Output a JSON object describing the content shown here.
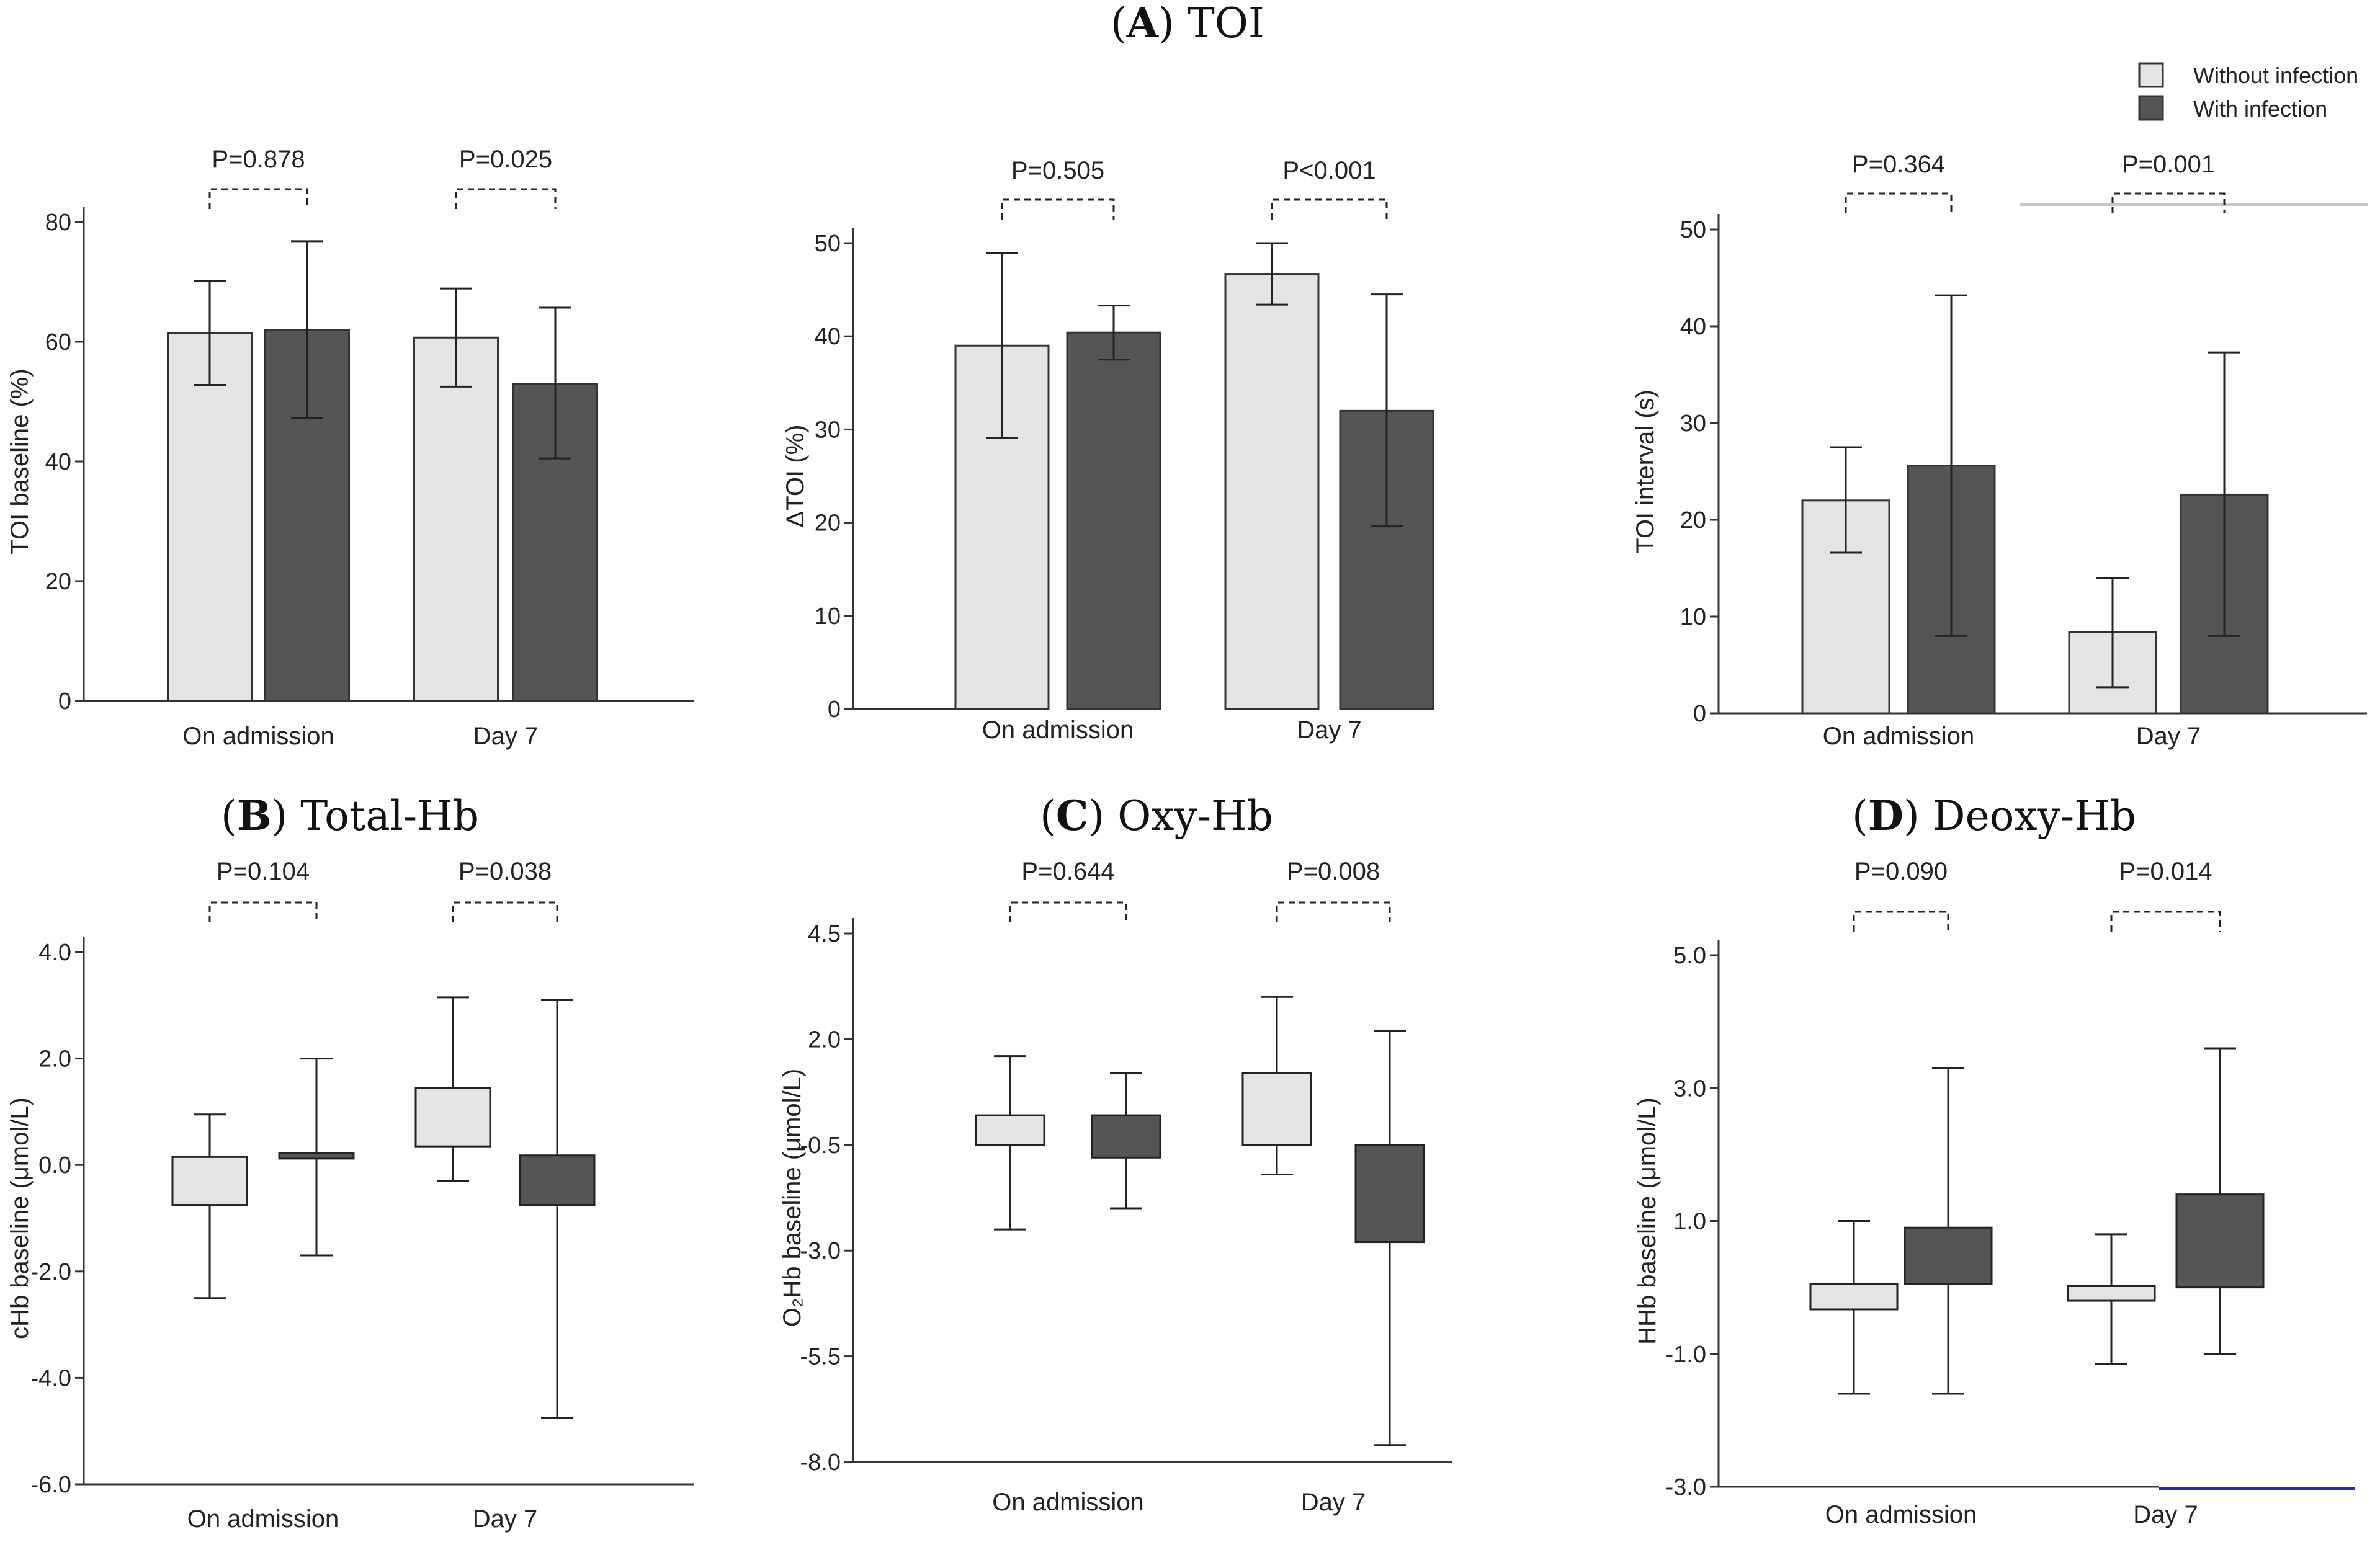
{
  "colors": {
    "without_fill": "#e4e4e4",
    "with_fill": "#555555",
    "axis": "#333333",
    "blue_line": "#2b2f9e"
  },
  "legend": {
    "without_label": "Without infection",
    "with_label": "With infection"
  },
  "panel_titles": {
    "A": {
      "letter": "A",
      "text": " TOI"
    },
    "B": {
      "letter": "B",
      "text": " Total-Hb"
    },
    "C": {
      "letter": "C",
      "text": " Oxy-Hb"
    },
    "D": {
      "letter": "D",
      "text": " Deoxy-Hb"
    }
  },
  "chart_data": [
    {
      "id": "toi_baseline",
      "type": "bar",
      "ylabel": "TOI baseline (%)",
      "ylim": [
        0,
        80
      ],
      "yticks": [
        0,
        20,
        40,
        60,
        80
      ],
      "ytick_labels": [
        "0",
        "20",
        "40",
        "60",
        "80"
      ],
      "categories": [
        "On admission",
        "Day 7"
      ],
      "p_values": [
        "P=0.878",
        "P=0.025"
      ],
      "series": [
        {
          "name": "Without infection",
          "values": [
            61.5,
            60.7
          ],
          "err_low": [
            52.8,
            52.5
          ],
          "err_high": [
            70.2,
            68.9
          ]
        },
        {
          "name": "With infection",
          "values": [
            62.0,
            53.0
          ],
          "err_low": [
            47.2,
            40.5
          ],
          "err_high": [
            76.8,
            65.7
          ]
        }
      ]
    },
    {
      "id": "delta_toi",
      "type": "bar",
      "ylabel": "ΔTOI (%)",
      "ylim": [
        0,
        50
      ],
      "yticks": [
        0,
        10,
        20,
        30,
        40,
        50
      ],
      "ytick_labels": [
        "0",
        "10",
        "20",
        "30",
        "40",
        "50"
      ],
      "categories": [
        "On admission",
        "Day 7"
      ],
      "p_values": [
        "P=0.505",
        "P<0.001"
      ],
      "series": [
        {
          "name": "Without infection",
          "values": [
            39.0,
            46.7
          ],
          "err_low": [
            29.1,
            43.4
          ],
          "err_high": [
            48.9,
            50.0
          ]
        },
        {
          "name": "With infection",
          "values": [
            40.4,
            32.0
          ],
          "err_low": [
            37.5,
            19.6
          ],
          "err_high": [
            43.3,
            44.5
          ]
        }
      ]
    },
    {
      "id": "toi_interval",
      "type": "bar",
      "ylabel": "TOI interval (s)",
      "ylim": [
        0,
        50
      ],
      "yticks": [
        0,
        10,
        20,
        30,
        40,
        50
      ],
      "ytick_labels": [
        "0",
        "10",
        "20",
        "30",
        "40",
        "50"
      ],
      "categories": [
        "On admission",
        "Day 7"
      ],
      "p_values": [
        "P=0.364",
        "P=0.001"
      ],
      "series": [
        {
          "name": "Without infection",
          "values": [
            22.0,
            8.4
          ],
          "err_low": [
            16.6,
            2.7
          ],
          "err_high": [
            27.5,
            14.0
          ]
        },
        {
          "name": "With infection",
          "values": [
            25.6,
            22.6
          ],
          "err_low": [
            8.0,
            8.0
          ],
          "err_high": [
            43.2,
            37.3
          ]
        }
      ]
    },
    {
      "id": "chb_baseline",
      "type": "box",
      "ylabel": "cHb baseline (μmol/L)",
      "ylim": [
        -6.0,
        4.0
      ],
      "yticks": [
        -6,
        -4,
        -2,
        0,
        2,
        4
      ],
      "ytick_labels": [
        "-6.0",
        "-4.0",
        "-2.0",
        "0.0",
        "2.0",
        "4.0"
      ],
      "categories": [
        "On admission",
        "Day 7"
      ],
      "p_values": [
        "P=0.104",
        "P=0.038"
      ],
      "series": [
        {
          "name": "Without infection",
          "box_low": [
            -0.75,
            0.35
          ],
          "box_high": [
            0.15,
            1.45
          ],
          "whisker_low": [
            -2.5,
            -0.3
          ],
          "whisker_high": [
            0.95,
            3.15
          ]
        },
        {
          "name": "With infection",
          "box_low": [
            0.12,
            -0.75
          ],
          "box_high": [
            0.22,
            0.18
          ],
          "whisker_low": [
            -1.7,
            -4.75
          ],
          "whisker_high": [
            2.0,
            3.1
          ]
        }
      ]
    },
    {
      "id": "o2hb_baseline",
      "type": "box",
      "ylabel": "O₂Hb baseline (μmol/L)",
      "ylim": [
        -8.0,
        4.5
      ],
      "yticks": [
        -8,
        -5.5,
        -3,
        -0.5,
        2,
        4.5
      ],
      "ytick_labels": [
        "-8.0",
        "-5.5",
        "-3.0",
        "-0.5",
        "2.0",
        "4.5"
      ],
      "categories": [
        "On admission",
        "Day 7"
      ],
      "p_values": [
        "P=0.644",
        "P=0.008"
      ],
      "series": [
        {
          "name": "Without infection",
          "box_low": [
            -0.5,
            -0.5
          ],
          "box_high": [
            0.2,
            1.2
          ],
          "whisker_low": [
            -2.5,
            -1.2
          ],
          "whisker_high": [
            1.6,
            3.0
          ]
        },
        {
          "name": "With infection",
          "box_low": [
            -0.8,
            -2.8
          ],
          "box_high": [
            0.2,
            -0.5
          ],
          "whisker_low": [
            -2.0,
            -7.6
          ],
          "whisker_high": [
            1.2,
            2.2
          ]
        }
      ]
    },
    {
      "id": "hhb_baseline",
      "type": "box",
      "ylabel": "HHb baseline (μmol/L)",
      "ylim": [
        -3.0,
        5.0
      ],
      "yticks": [
        -3,
        -1,
        1,
        3,
        5
      ],
      "ytick_labels": [
        "-3.0",
        "-1.0",
        "1.0",
        "3.0",
        "5.0"
      ],
      "categories": [
        "On admission",
        "Day 7"
      ],
      "p_values": [
        "P=0.090",
        "P=0.014"
      ],
      "series": [
        {
          "name": "Without infection",
          "box_low": [
            -0.33,
            -0.2
          ],
          "box_high": [
            0.05,
            0.02
          ],
          "whisker_low": [
            -1.6,
            -1.15
          ],
          "whisker_high": [
            1.0,
            0.8
          ]
        },
        {
          "name": "With infection",
          "box_low": [
            0.05,
            0.0
          ],
          "box_high": [
            0.9,
            1.4
          ],
          "whisker_low": [
            -1.6,
            -1.0
          ],
          "whisker_high": [
            3.3,
            3.6
          ]
        }
      ]
    }
  ]
}
